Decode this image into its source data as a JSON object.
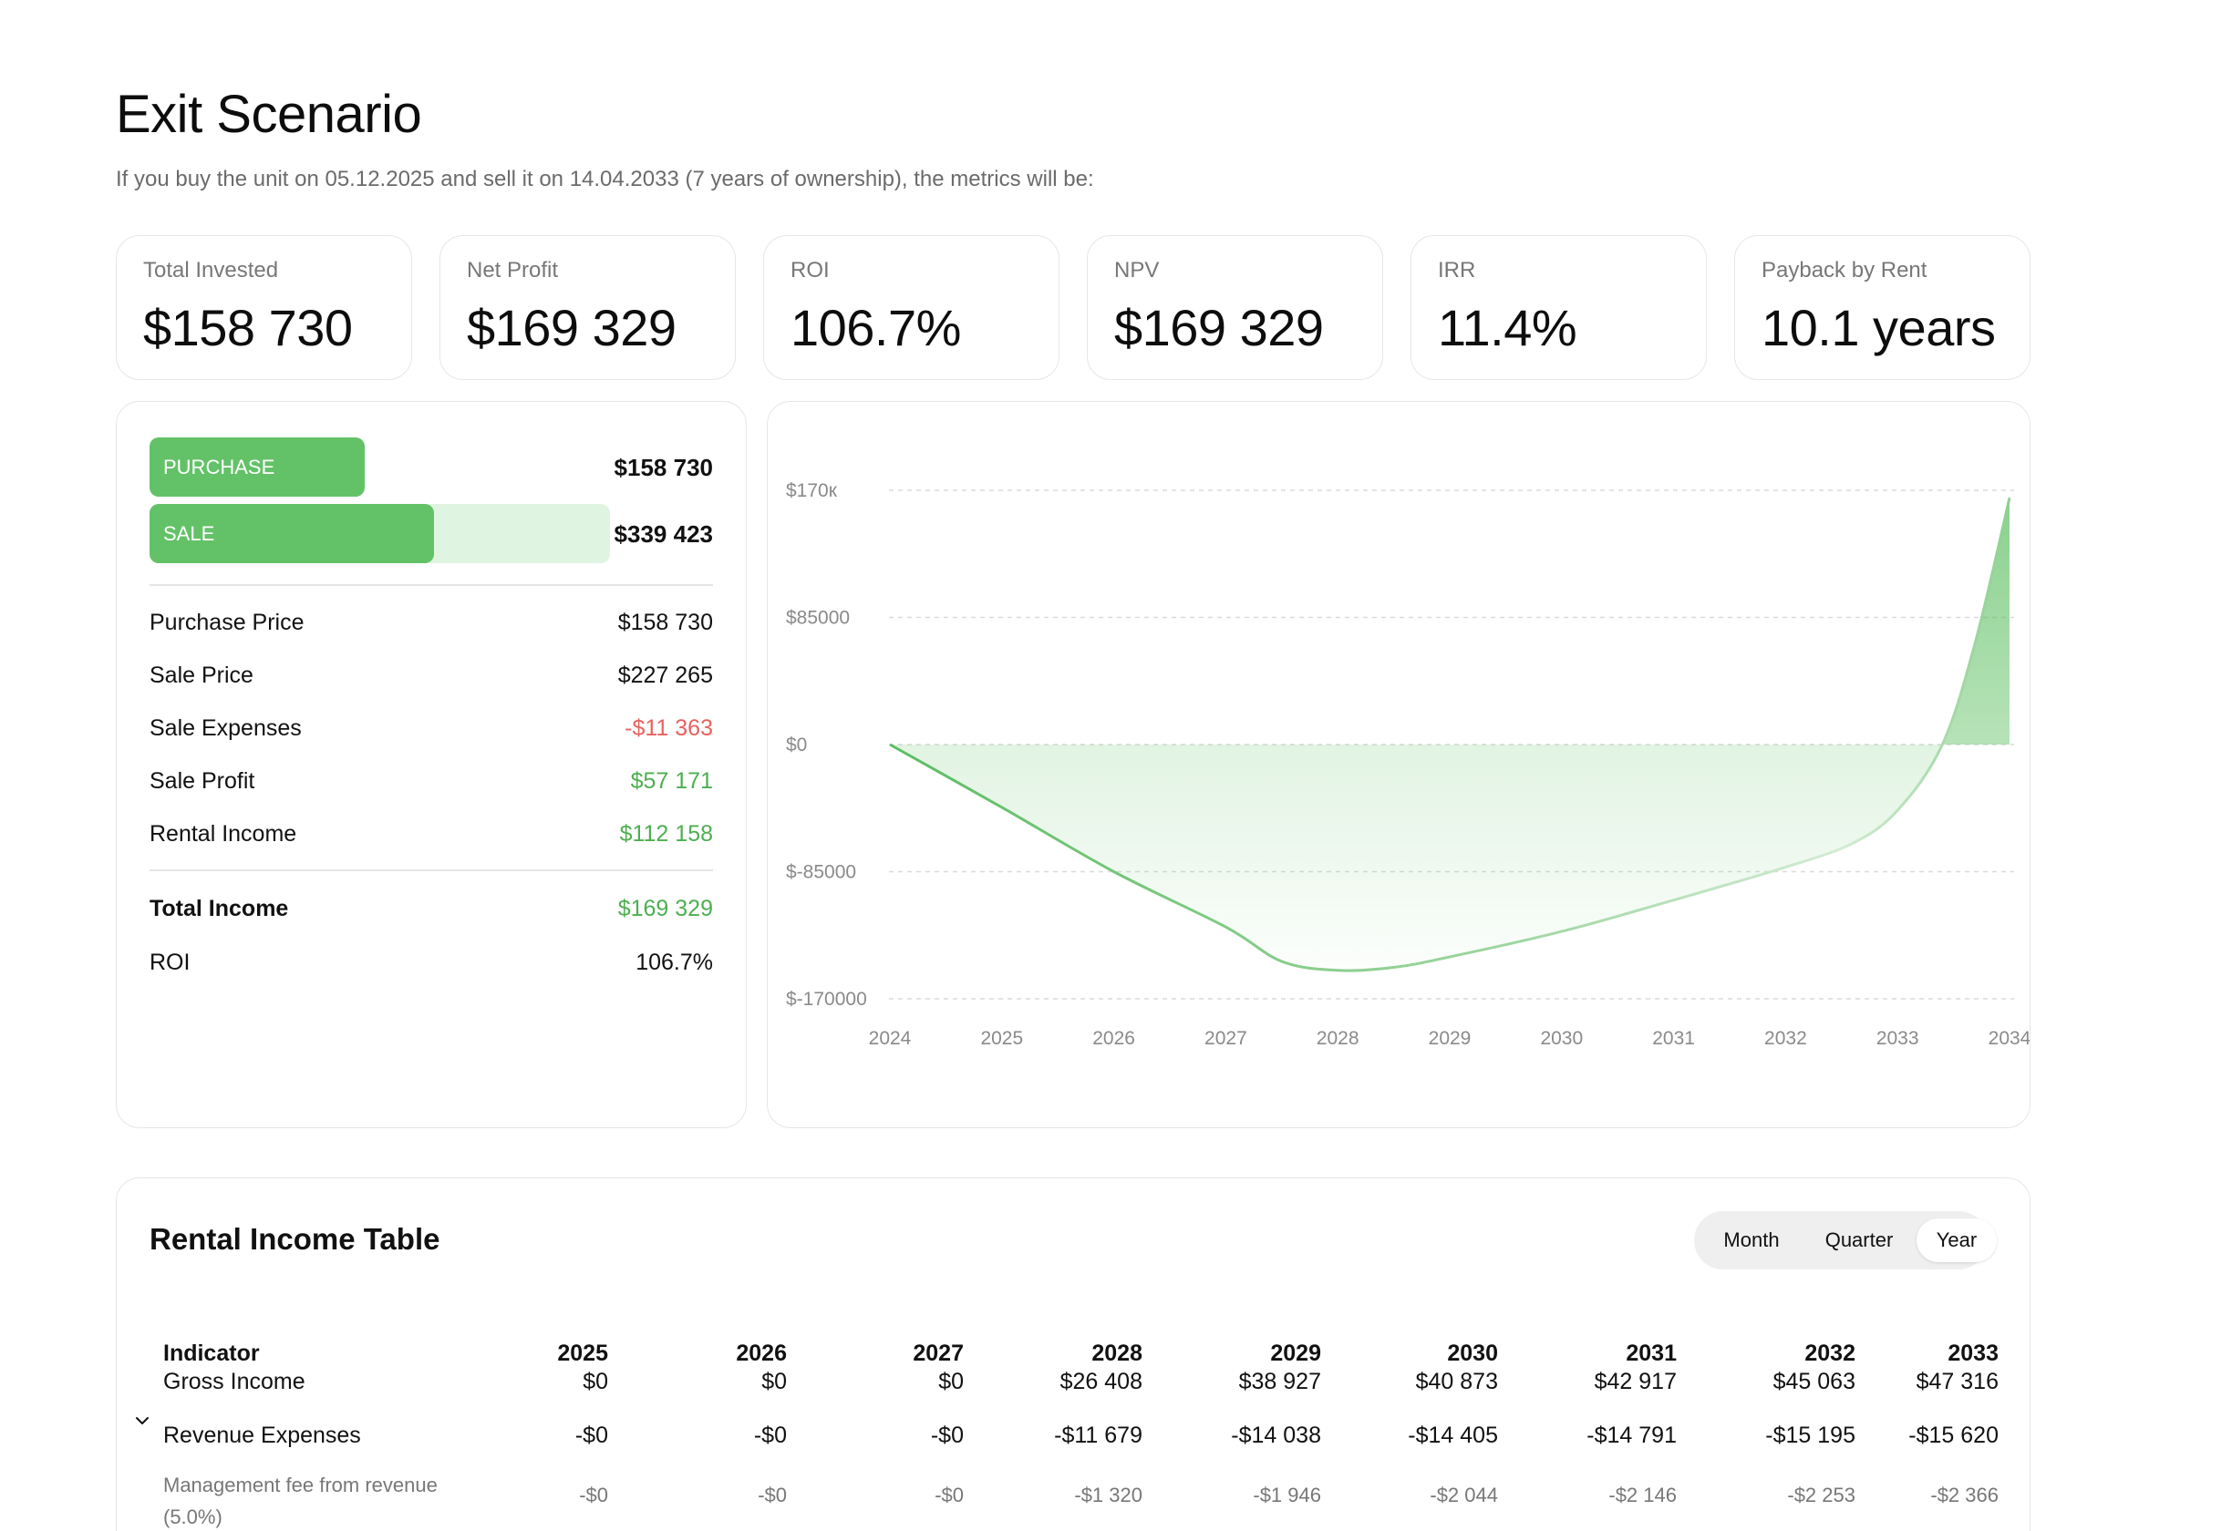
{
  "header": {
    "title": "Exit Scenario",
    "subtitle": "If you buy the unit on 05.12.2025 and sell it on 14.04.2033 (7 years of ownership), the metrics will be:"
  },
  "metrics": [
    {
      "label": "Total Invested",
      "value": "$158 730"
    },
    {
      "label": "Net Profit",
      "value": "$169 329"
    },
    {
      "label": "ROI",
      "value": "106.7%"
    },
    {
      "label": "NPV",
      "value": "$169 329"
    },
    {
      "label": "IRR",
      "value": "11.4%"
    },
    {
      "label": "Payback by Rent",
      "value": "10.1 years"
    }
  ],
  "summary": {
    "purchase_bar": {
      "label": "PURCHASE",
      "value": "$158 730",
      "fraction": 0.468
    },
    "sale_bar": {
      "label": "SALE",
      "value": "$339 423",
      "fraction": 1.0
    },
    "rows": [
      {
        "label": "Purchase Price",
        "value": "$158 730"
      },
      {
        "label": "Sale Price",
        "value": "$227 265"
      },
      {
        "label": "Sale Expenses",
        "value": "-$11 363"
      },
      {
        "label": "Sale Profit",
        "value": "$57 171"
      },
      {
        "label": "Rental Income",
        "value": "$112 158"
      }
    ],
    "total_income": {
      "label": "Total Income",
      "value": "$169 329"
    },
    "roi": {
      "label": "ROI",
      "value": "106.7%"
    }
  },
  "colors": {
    "accent_green": "#63c267",
    "accent_green_light": "#e0f4e2",
    "negative_red": "#e8615f",
    "positive_green": "#4caf50"
  },
  "chart_data": {
    "type": "area",
    "y_tick_labels": [
      "$170к",
      "$85000",
      "$0",
      "$-85000",
      "$-170000"
    ],
    "y_ticks": [
      170000,
      85000,
      0,
      -85000,
      -170000
    ],
    "x_tick_labels": [
      "2024",
      "2025",
      "2026",
      "2027",
      "2028",
      "2029",
      "2030",
      "2031",
      "2032",
      "2033",
      "2034"
    ],
    "xlim": [
      2024,
      2034
    ],
    "ylim": [
      -170000,
      170000
    ],
    "grid": true,
    "series": [
      {
        "x": [
          2024,
          2025,
          2026,
          2027,
          2027.5,
          2028,
          2028.5,
          2029,
          2030,
          2031,
          2032,
          2032.6,
          2033,
          2033.4,
          2033.7,
          2034
        ],
        "values": [
          0,
          -42000,
          -85000,
          -122000,
          -145000,
          -151000,
          -149000,
          -142000,
          -125000,
          -104000,
          -82000,
          -66000,
          -44000,
          0,
          70000,
          165000
        ]
      }
    ]
  },
  "table": {
    "title": "Rental Income Table",
    "periods": [
      "Month",
      "Quarter",
      "Year"
    ],
    "active_period": "Year",
    "columns": [
      "Indicator",
      "2025",
      "2026",
      "2027",
      "2028",
      "2029",
      "2030",
      "2031",
      "2032",
      "2033"
    ],
    "rows": [
      {
        "label": "Gross Income",
        "values": [
          "$0",
          "$0",
          "$0",
          "$26 408",
          "$38 927",
          "$40 873",
          "$42 917",
          "$45 063",
          "$47 316"
        ]
      },
      {
        "label": "Revenue Expenses",
        "values": [
          "-$0",
          "-$0",
          "-$0",
          "-$11 679",
          "-$14 038",
          "-$14 405",
          "-$14 791",
          "-$15 195",
          "-$15 620"
        ]
      },
      {
        "label": "Management fee from revenue (5.0%)",
        "values": [
          "-$0",
          "-$0",
          "-$0",
          "-$1 320",
          "-$1 946",
          "-$2 044",
          "-$2 146",
          "-$2 253",
          "-$2 366"
        ]
      }
    ]
  }
}
